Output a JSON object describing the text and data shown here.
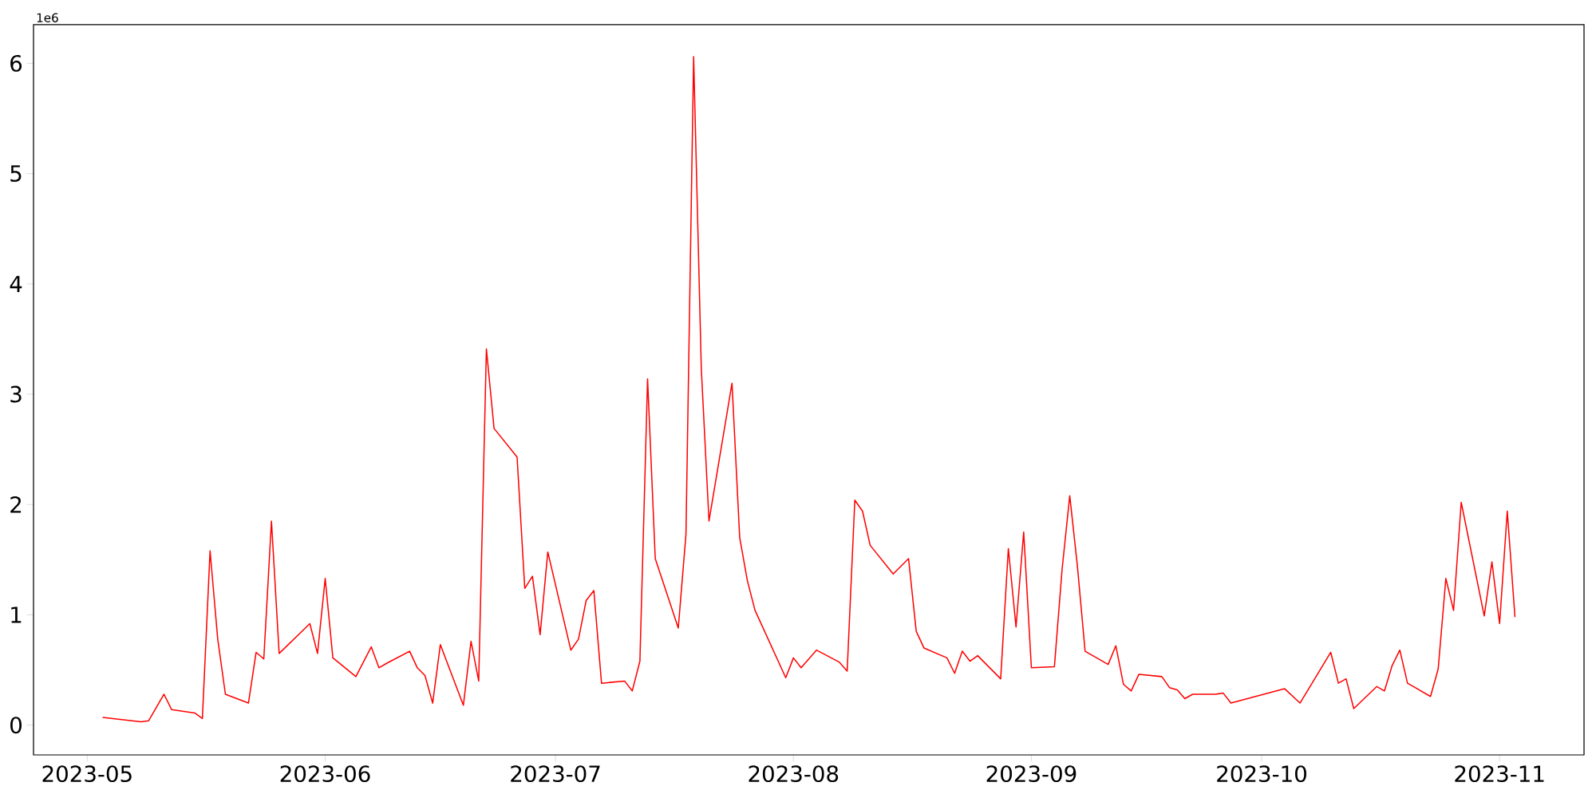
{
  "chart_data": {
    "type": "line",
    "annotations": [
      "1e6"
    ],
    "x": [
      "2023-05-03",
      "2023-05-08",
      "2023-05-09",
      "2023-05-11",
      "2023-05-12",
      "2023-05-15",
      "2023-05-16",
      "2023-05-17",
      "2023-05-18",
      "2023-05-19",
      "2023-05-22",
      "2023-05-23",
      "2023-05-24",
      "2023-05-25",
      "2023-05-26",
      "2023-05-30",
      "2023-05-31",
      "2023-06-01",
      "2023-06-02",
      "2023-06-05",
      "2023-06-07",
      "2023-06-08",
      "2023-06-09",
      "2023-06-12",
      "2023-06-13",
      "2023-06-14",
      "2023-06-15",
      "2023-06-16",
      "2023-06-19",
      "2023-06-20",
      "2023-06-21",
      "2023-06-22",
      "2023-06-23",
      "2023-06-26",
      "2023-06-27",
      "2023-06-28",
      "2023-06-29",
      "2023-06-30",
      "2023-07-03",
      "2023-07-04",
      "2023-07-05",
      "2023-07-06",
      "2023-07-07",
      "2023-07-10",
      "2023-07-11",
      "2023-07-12",
      "2023-07-13",
      "2023-07-14",
      "2023-07-17",
      "2023-07-18",
      "2023-07-19",
      "2023-07-20",
      "2023-07-21",
      "2023-07-24",
      "2023-07-25",
      "2023-07-26",
      "2023-07-27",
      "2023-07-31",
      "2023-08-01",
      "2023-08-02",
      "2023-08-04",
      "2023-08-07",
      "2023-08-08",
      "2023-08-09",
      "2023-08-10",
      "2023-08-11",
      "2023-08-14",
      "2023-08-16",
      "2023-08-17",
      "2023-08-18",
      "2023-08-21",
      "2023-08-22",
      "2023-08-23",
      "2023-08-24",
      "2023-08-25",
      "2023-08-28",
      "2023-08-29",
      "2023-08-30",
      "2023-08-31",
      "2023-09-01",
      "2023-09-04",
      "2023-09-05",
      "2023-09-06",
      "2023-09-07",
      "2023-09-08",
      "2023-09-11",
      "2023-09-12",
      "2023-09-13",
      "2023-09-14",
      "2023-09-15",
      "2023-09-18",
      "2023-09-19",
      "2023-09-20",
      "2023-09-21",
      "2023-09-22",
      "2023-09-25",
      "2023-09-26",
      "2023-09-27",
      "2023-10-04",
      "2023-10-06",
      "2023-10-10",
      "2023-10-11",
      "2023-10-12",
      "2023-10-13",
      "2023-10-16",
      "2023-10-17",
      "2023-10-18",
      "2023-10-19",
      "2023-10-20",
      "2023-10-23",
      "2023-10-24",
      "2023-10-25",
      "2023-10-26",
      "2023-10-27",
      "2023-10-30",
      "2023-10-31",
      "2023-11-01",
      "2023-11-02",
      "2023-11-03"
    ],
    "series": [
      {
        "color": "#ff0000",
        "values": [
          0.07,
          0.03,
          0.04,
          0.28,
          0.14,
          0.11,
          0.06,
          1.58,
          0.78,
          0.28,
          0.2,
          0.66,
          0.6,
          1.85,
          0.65,
          0.92,
          0.65,
          1.33,
          0.61,
          0.44,
          0.71,
          0.52,
          0.56,
          0.67,
          0.52,
          0.45,
          0.2,
          0.73,
          0.18,
          0.76,
          0.4,
          3.41,
          2.69,
          2.43,
          1.24,
          1.35,
          0.82,
          1.57,
          0.68,
          0.78,
          1.13,
          1.22,
          0.38,
          0.4,
          0.31,
          0.58,
          3.14,
          1.51,
          0.88,
          1.73,
          6.06,
          3.23,
          1.85,
          3.1,
          1.7,
          1.31,
          1.04,
          0.43,
          0.61,
          0.52,
          0.68,
          0.57,
          0.49,
          2.04,
          1.94,
          1.63,
          1.37,
          1.51,
          0.85,
          0.7,
          0.61,
          0.47,
          0.67,
          0.58,
          0.63,
          0.42,
          1.6,
          0.89,
          1.75,
          0.52,
          0.53,
          1.41,
          2.08,
          1.44,
          0.67,
          0.55,
          0.72,
          0.37,
          0.31,
          0.46,
          0.44,
          0.34,
          0.32,
          0.24,
          0.28,
          0.28,
          0.29,
          0.2,
          0.33,
          0.2,
          0.66,
          0.38,
          0.42,
          0.15,
          0.35,
          0.31,
          0.54,
          0.68,
          0.38,
          0.26,
          0.51,
          1.33,
          1.04,
          2.02,
          0.99,
          1.48,
          0.92,
          1.94,
          0.98
        ]
      }
    ],
    "xlim": [
      "2023-04-24",
      "2023-11-12"
    ],
    "xticks": [
      {
        "value": "2023-05-01",
        "label": "2023-05"
      },
      {
        "value": "2023-06-01",
        "label": "2023-06"
      },
      {
        "value": "2023-07-01",
        "label": "2023-07"
      },
      {
        "value": "2023-08-01",
        "label": "2023-08"
      },
      {
        "value": "2023-09-01",
        "label": "2023-09"
      },
      {
        "value": "2023-10-01",
        "label": "2023-10"
      },
      {
        "value": "2023-11-01",
        "label": "2023-11"
      }
    ],
    "ylim": [
      -0.27,
      6.35
    ],
    "yticks": [
      0,
      1,
      2,
      3,
      4,
      5,
      6
    ],
    "grid": false,
    "marker": "none",
    "line_style": "solid"
  }
}
